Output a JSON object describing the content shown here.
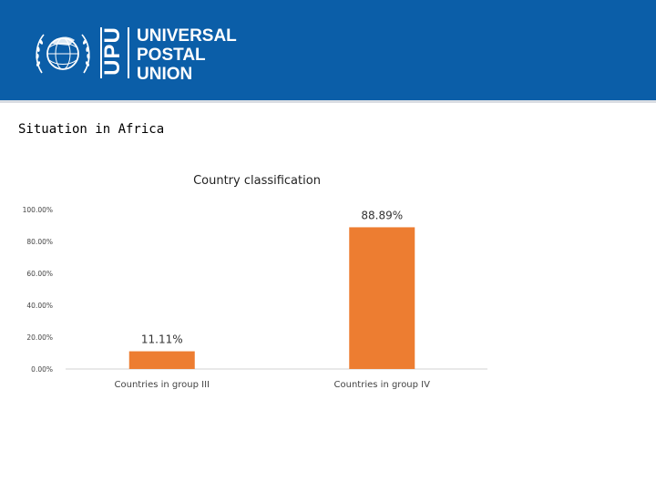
{
  "header": {
    "acronym": "UPU",
    "org_name_lines": [
      "UNIVERSAL",
      "POSTAL",
      "UNION"
    ],
    "colors": {
      "background": "#0b5ea8",
      "text": "#ffffff"
    },
    "emblem_icon": "upu-emblem-icon"
  },
  "page": {
    "subtitle": "Situation in Africa"
  },
  "chart_data": {
    "type": "bar",
    "title": "Country classification",
    "categories": [
      "Countries in group III",
      "Countries in group IV"
    ],
    "values": [
      11.11,
      88.89
    ],
    "data_labels": [
      "11.11%",
      "88.89%"
    ],
    "ylim": [
      0,
      100
    ],
    "yticks": [
      0,
      20,
      40,
      60,
      80,
      100
    ],
    "ytick_labels": [
      "0.00%",
      "20.00%",
      "40.00%",
      "60.00%",
      "80.00%",
      "100.00%"
    ],
    "xlabel": "",
    "ylabel": "",
    "bar_color": "#ed7d31",
    "grid": false,
    "legend": "none"
  }
}
